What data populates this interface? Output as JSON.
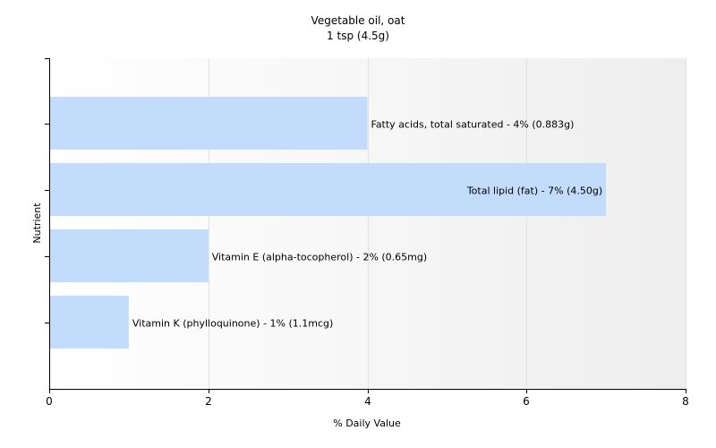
{
  "chart_data": {
    "type": "bar",
    "orientation": "horizontal",
    "title": "Vegetable oil, oat",
    "subtitle": "1 tsp (4.5g)",
    "xlabel": "% Daily Value",
    "ylabel": "Nutrient",
    "xlim": [
      0,
      8
    ],
    "xticks": [
      0,
      2,
      4,
      6,
      8
    ],
    "grid": "vertical",
    "bar_color": "#c4dcfc",
    "categories": [
      "Fatty acids, total saturated",
      "Total lipid (fat)",
      "Vitamin E (alpha-tocopherol)",
      "Vitamin K (phylloquinone)"
    ],
    "values": [
      4,
      7,
      2,
      1
    ],
    "bar_labels": [
      "Fatty acids, total saturated - 4% (0.883g)",
      "Total lipid (fat) - 7% (4.50g)",
      "Vitamin E (alpha-tocopherol) - 2% (0.65mg)",
      "Vitamin K (phylloquinone) - 1% (1.1mcg)"
    ]
  }
}
